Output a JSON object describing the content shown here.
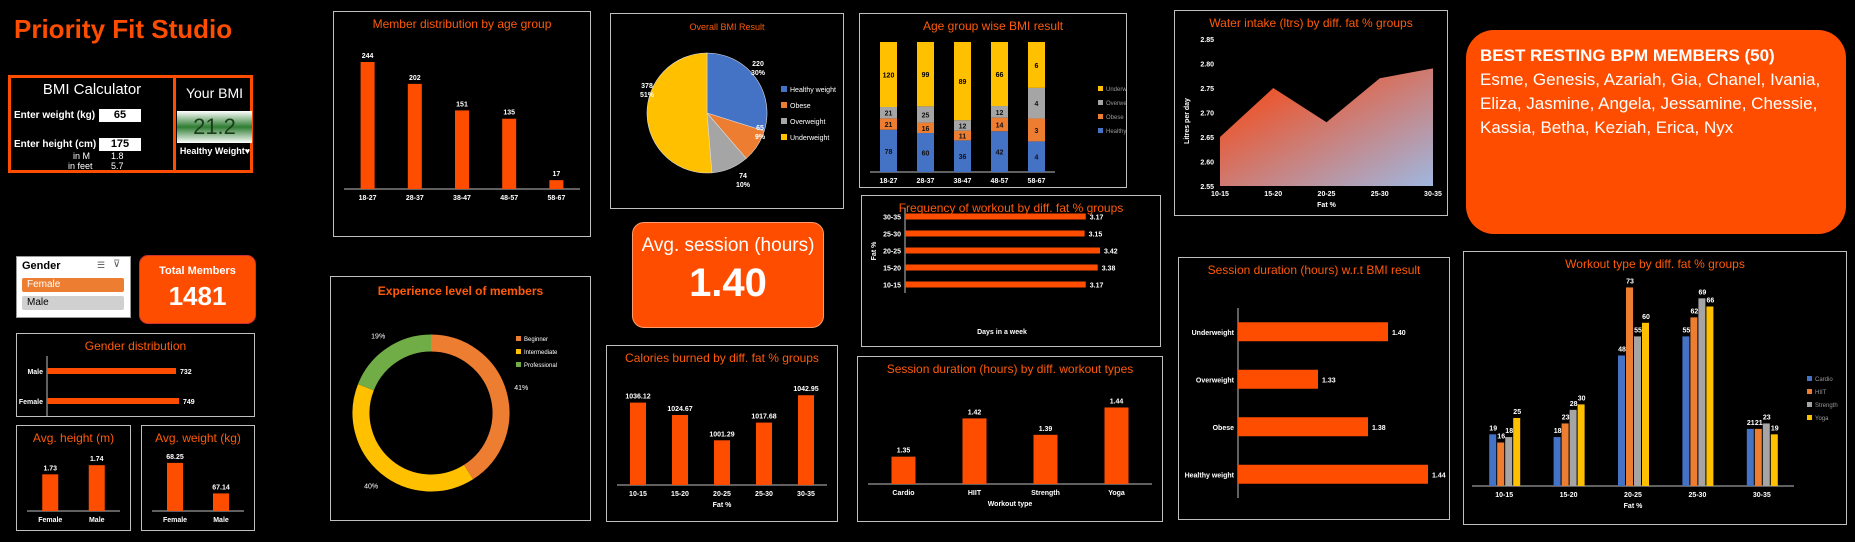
{
  "app_title": "Priority Fit Studio",
  "colors": {
    "accent": "#ff4d00",
    "bar": "#ff4d00",
    "healthy": "#4472c4",
    "obese": "#ed7d31",
    "overweight": "#a5a5a5",
    "underweight": "#ffc000",
    "pro": "#70ad47"
  },
  "bmi": {
    "title": "BMI Calculator",
    "weight_label": "Enter weight (kg)",
    "weight_value": "65",
    "height_label": "Enter height (cm)",
    "height_value": "175",
    "in_m_label": "in M",
    "in_m_value": "1.8",
    "in_feet_label": "in feet",
    "in_feet_value": "5.7",
    "your_bmi_label": "Your BMI",
    "your_bmi_value": "21.2",
    "status": "Healthy Weight♥"
  },
  "slicer": {
    "title": "Gender",
    "items": [
      "Female",
      "Male"
    ],
    "selected": "Female"
  },
  "total_members": {
    "label": "Total Members",
    "value": "1481"
  },
  "avg_session": {
    "label": "Avg. session (hours)",
    "value": "1.40"
  },
  "best_bpm": {
    "title": "BEST RESTING BPM MEMBERS (50)",
    "names": "Esme, Genesis, Azariah, Gia, Chanel, Ivania, Eliza, Jasmine, Angela, Jessamine, Chessie, Kassia, Betha, Keziah, Erica, Nyx"
  },
  "chart_data": [
    {
      "id": "gender_dist",
      "type": "bar",
      "orientation": "horizontal",
      "title": "Gender distribution",
      "categories": [
        "Male",
        "Female"
      ],
      "values": [
        732,
        749
      ]
    },
    {
      "id": "avg_height",
      "type": "bar",
      "title": "Avg. height (m)",
      "categories": [
        "Female",
        "Male"
      ],
      "values": [
        1.73,
        1.74
      ]
    },
    {
      "id": "avg_weight",
      "type": "bar",
      "title": "Avg. weight (kg)",
      "categories": [
        "Female",
        "Male"
      ],
      "values": [
        68.25,
        67.14
      ]
    },
    {
      "id": "age_dist",
      "type": "bar",
      "title": "Member distribution by age group",
      "categories": [
        "18-27",
        "28-37",
        "38-47",
        "48-57",
        "58-67"
      ],
      "values": [
        244,
        202,
        151,
        135,
        17
      ]
    },
    {
      "id": "experience",
      "type": "pie",
      "donut": true,
      "title": "Experience level of members",
      "labels": [
        "Beginner",
        "Intermediate",
        "Professional"
      ],
      "values": [
        41,
        40,
        19
      ],
      "value_labels": [
        "41%",
        "40%",
        "19%"
      ]
    },
    {
      "id": "overall_bmi",
      "type": "pie",
      "title": "Overall BMI Result",
      "labels": [
        "Healthy weight",
        "Obese",
        "Overweight",
        "Underweight"
      ],
      "values": [
        220,
        65,
        74,
        378
      ],
      "value_labels": [
        "220\n30%",
        "65\n9%",
        "74\n10%",
        "378\n51%"
      ]
    },
    {
      "id": "cal_burned",
      "type": "bar",
      "title": "Calories burned by diff. fat % groups",
      "xlabel": "Fat %",
      "categories": [
        "10-15",
        "15-20",
        "20-25",
        "25-30",
        "30-35"
      ],
      "values": [
        1036.12,
        1024.67,
        1001.29,
        1017.68,
        1042.95
      ],
      "ylim": [
        960,
        1050
      ]
    },
    {
      "id": "age_bmi",
      "type": "bar",
      "stacked": true,
      "title": "Age group wise BMI result",
      "categories": [
        "18-27",
        "28-37",
        "38-47",
        "48-57",
        "58-67"
      ],
      "series": [
        {
          "name": "Healthy weight",
          "values": [
            78,
            60,
            36,
            42,
            4
          ]
        },
        {
          "name": "Obese",
          "values": [
            21,
            16,
            11,
            14,
            3
          ]
        },
        {
          "name": "Overweight",
          "values": [
            21,
            25,
            12,
            12,
            4
          ]
        },
        {
          "name": "Underweight",
          "values": [
            120,
            99,
            89,
            66,
            6
          ]
        }
      ]
    },
    {
      "id": "workout_freq",
      "type": "bar",
      "orientation": "horizontal",
      "title": "Frequency of workout by diff. fat % groups",
      "xlabel": "Days in a week",
      "ylabel": "Fat %",
      "categories": [
        "30-35",
        "25-30",
        "20-25",
        "15-20",
        "10-15"
      ],
      "values": [
        3.17,
        3.15,
        3.42,
        3.38,
        3.17
      ]
    },
    {
      "id": "session_workout",
      "type": "bar",
      "title": "Session duration (hours) by diff. workout types",
      "xlabel": "Workout type",
      "categories": [
        "Cardio",
        "HIIT",
        "Strength",
        "Yoga"
      ],
      "values": [
        1.35,
        1.42,
        1.39,
        1.44
      ],
      "ylim": [
        1.3,
        1.45
      ]
    },
    {
      "id": "water",
      "type": "area",
      "title": "Water intake (ltrs) by diff. fat % groups",
      "xlabel": "Fat %",
      "ylabel": "Litres per day",
      "categories": [
        "10-15",
        "15-20",
        "20-25",
        "25-30",
        "30-35"
      ],
      "values": [
        2.65,
        2.75,
        2.68,
        2.77,
        2.79
      ],
      "ylim": [
        2.55,
        2.85
      ],
      "yticks": [
        "2.55",
        "2.60",
        "2.65",
        "2.70",
        "2.75",
        "2.80",
        "2.85"
      ]
    },
    {
      "id": "session_bmi",
      "type": "bar",
      "orientation": "horizontal",
      "title": "Session duration (hours) w.r.t BMI result",
      "categories": [
        "Underweight",
        "Overweight",
        "Obese",
        "Healthy weight"
      ],
      "values": [
        1.4,
        1.33,
        1.38,
        1.44
      ],
      "xlim": [
        1.25,
        1.45
      ]
    },
    {
      "id": "workout_type",
      "type": "bar",
      "title": "Workout type by diff. fat % groups",
      "xlabel": "Fat %",
      "categories": [
        "10-15",
        "15-20",
        "20-25",
        "25-30",
        "30-35"
      ],
      "series": [
        {
          "name": "Cardio",
          "values": [
            19,
            18,
            48,
            55,
            21
          ]
        },
        {
          "name": "HIIT",
          "values": [
            16,
            23,
            73,
            62,
            21
          ]
        },
        {
          "name": "Strength",
          "values": [
            18,
            28,
            55,
            69,
            23
          ]
        },
        {
          "name": "Yoga",
          "values": [
            25,
            30,
            60,
            66,
            19
          ]
        }
      ]
    }
  ]
}
